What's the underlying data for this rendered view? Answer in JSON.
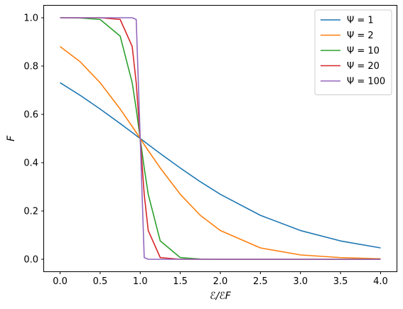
{
  "chart_data": {
    "type": "line",
    "xlabel": "ℰ/ℰF",
    "ylabel": "F",
    "xlim": [
      -0.2,
      4.2
    ],
    "ylim": [
      -0.05,
      1.05
    ],
    "xticks": [
      0.0,
      0.5,
      1.0,
      1.5,
      2.0,
      2.5,
      3.0,
      3.5,
      4.0
    ],
    "xtick_labels": [
      "0.0",
      "0.5",
      "1.0",
      "1.5",
      "2.0",
      "2.5",
      "3.0",
      "3.5",
      "4.0"
    ],
    "yticks": [
      0.0,
      0.2,
      0.4,
      0.6,
      0.8,
      1.0
    ],
    "ytick_labels": [
      "0.0",
      "0.2",
      "0.4",
      "0.6",
      "0.8",
      "1.0"
    ],
    "grid": false,
    "legend_position": "top-right",
    "x": [
      0.0,
      0.25,
      0.5,
      0.75,
      0.9,
      0.95,
      1.0,
      1.05,
      1.1,
      1.25,
      1.5,
      1.75,
      2.0,
      2.5,
      3.0,
      3.5,
      4.0
    ],
    "series": [
      {
        "name": "Ψ = 1",
        "color": "#1f77b4",
        "values": [
          0.731,
          0.679,
          0.622,
          0.562,
          0.525,
          0.512,
          0.5,
          0.488,
          0.475,
          0.438,
          0.378,
          0.321,
          0.269,
          0.182,
          0.119,
          0.076,
          0.047
        ]
      },
      {
        "name": "Ψ = 2",
        "color": "#ff7f0e",
        "values": [
          0.881,
          0.818,
          0.731,
          0.622,
          0.55,
          0.525,
          0.5,
          0.475,
          0.45,
          0.378,
          0.269,
          0.182,
          0.119,
          0.047,
          0.018,
          0.007,
          0.002
        ]
      },
      {
        "name": "Ψ = 10",
        "color": "#2ca02c",
        "values": [
          1.0,
          0.999,
          0.993,
          0.924,
          0.731,
          0.622,
          0.5,
          0.378,
          0.269,
          0.076,
          0.007,
          0.001,
          0.0,
          0.0,
          0.0,
          0.0,
          0.0
        ]
      },
      {
        "name": "Ψ = 20",
        "color": "#d62728",
        "values": [
          1.0,
          1.0,
          1.0,
          0.993,
          0.881,
          0.731,
          0.5,
          0.269,
          0.119,
          0.007,
          0.0,
          0.0,
          0.0,
          0.0,
          0.0,
          0.0,
          0.0
        ]
      },
      {
        "name": "Ψ = 100",
        "color": "#9467bd",
        "values": [
          1.0,
          1.0,
          1.0,
          1.0,
          1.0,
          0.993,
          0.5,
          0.007,
          0.0,
          0.0,
          0.0,
          0.0,
          0.0,
          0.0,
          0.0,
          0.0,
          0.0
        ]
      }
    ]
  }
}
